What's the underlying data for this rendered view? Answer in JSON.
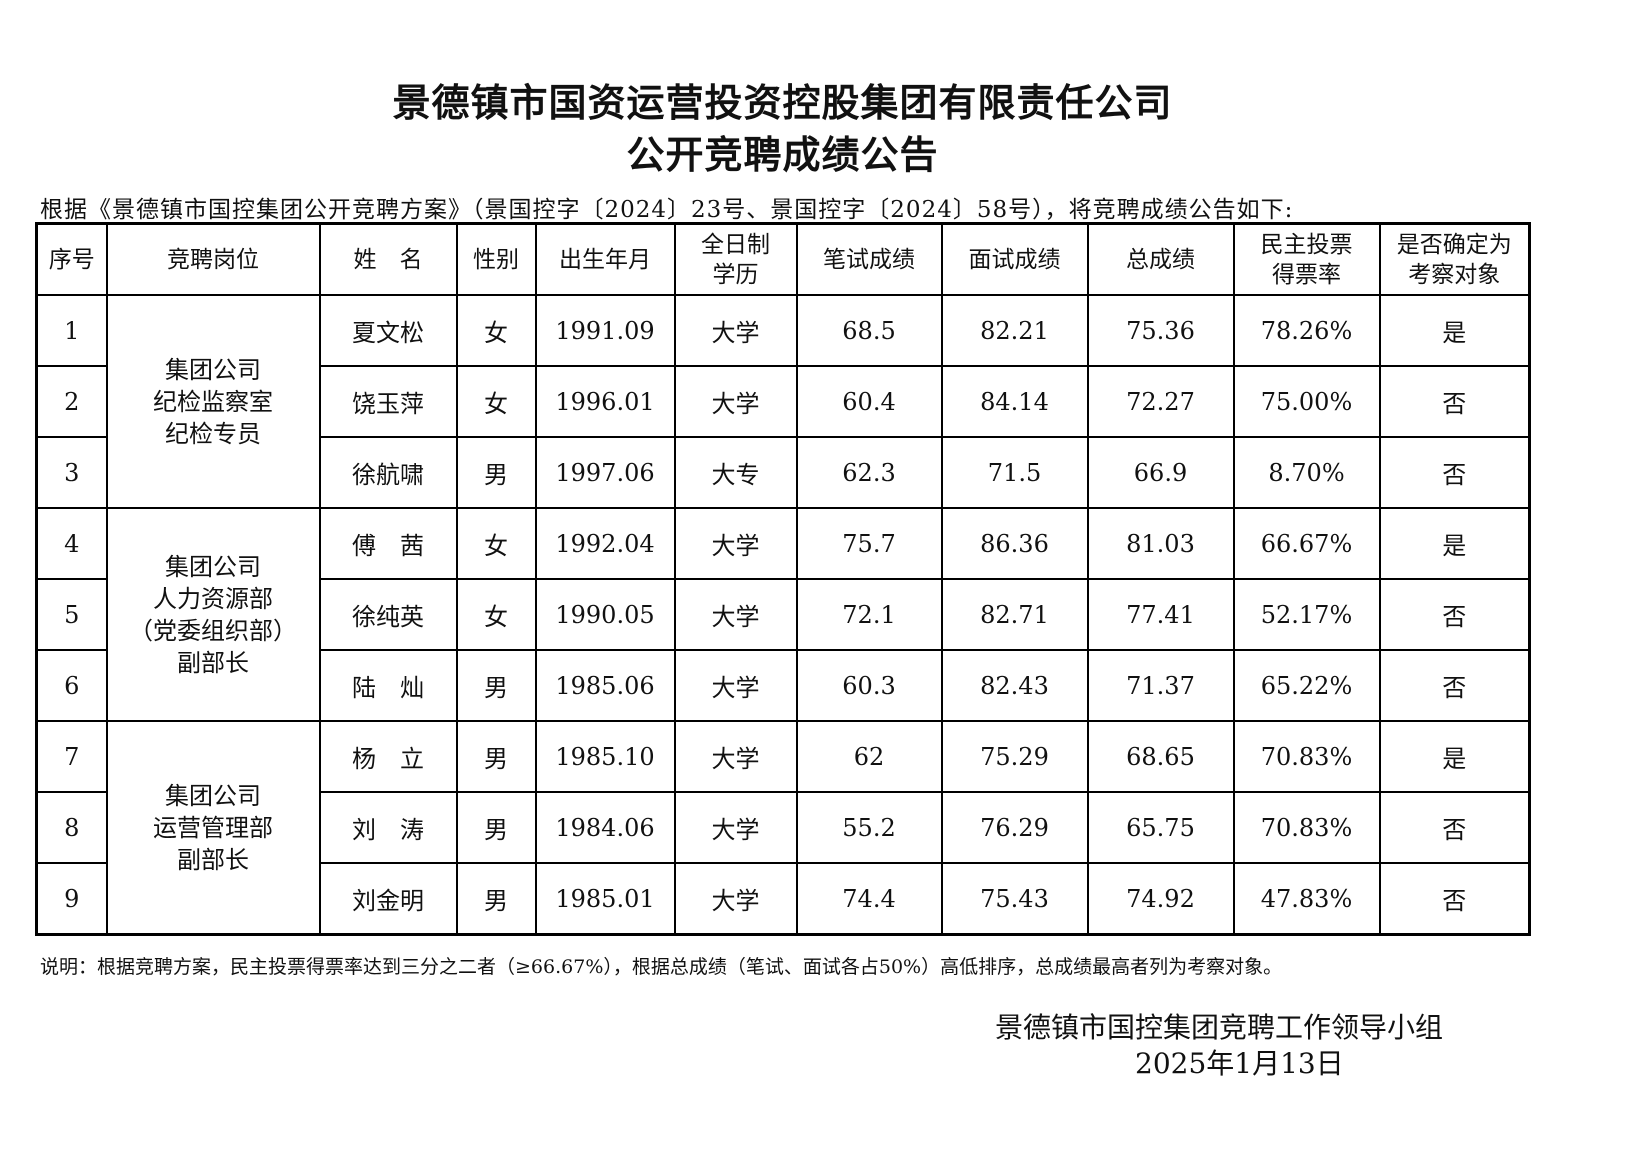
{
  "title_line1": "景德镇市国资运营投资控股集团有限责任公司",
  "title_line2": "公开竞聘成绩公告",
  "intro": "根据《景德镇市国控集团公开竞聘方案》（景国控字〔2024〕23号、景国控字〔2024〕58号），将竞聘成绩公告如下:",
  "headers": [
    "序号",
    "竞聘岗位",
    "姓　名",
    "性别",
    "出生年月",
    "全日制\n学历",
    "笔试成绩",
    "面试成绩",
    "总成绩",
    "民主投票\n得票率",
    "是否确定为\n考察对象"
  ],
  "positions": [
    "集团公司\n纪检监察室\n纪检专员",
    "集团公司\n人力资源部\n（党委组织部）\n副部长",
    "集团公司\n运营管理部\n副部长"
  ],
  "rows": [
    [
      "1",
      "夏文松",
      "女",
      "1991.09",
      "大学",
      "68.5",
      "82.21",
      "75.36",
      "78.26%",
      "是"
    ],
    [
      "2",
      "饶玉萍",
      "女",
      "1996.01",
      "大学",
      "60.4",
      "84.14",
      "72.27",
      "75.00%",
      "否"
    ],
    [
      "3",
      "徐航啸",
      "男",
      "1997.06",
      "大专",
      "62.3",
      "71.5",
      "66.9",
      "8.70%",
      "否"
    ],
    [
      "4",
      "傅　茜",
      "女",
      "1992.04",
      "大学",
      "75.7",
      "86.36",
      "81.03",
      "66.67%",
      "是"
    ],
    [
      "5",
      "徐纯英",
      "女",
      "1990.05",
      "大学",
      "72.1",
      "82.71",
      "77.41",
      "52.17%",
      "否"
    ],
    [
      "6",
      "陆　灿",
      "男",
      "1985.06",
      "大学",
      "60.3",
      "82.43",
      "71.37",
      "65.22%",
      "否"
    ],
    [
      "7",
      "杨　立",
      "男",
      "1985.10",
      "大学",
      "62",
      "75.29",
      "68.65",
      "70.83%",
      "是"
    ],
    [
      "8",
      "刘　涛",
      "男",
      "1984.06",
      "大学",
      "55.2",
      "76.29",
      "65.75",
      "70.83%",
      "否"
    ],
    [
      "9",
      "刘金明",
      "男",
      "1985.01",
      "大学",
      "74.4",
      "75.43",
      "74.92",
      "47.83%",
      "否"
    ]
  ],
  "note": "说明：根据竞聘方案，民主投票得票率达到三分之二者（≥66.67%），根据总成绩（笔试、面试各占50%）高低排序，总成绩最高者列为考察对象。",
  "signature": "景德镇市国控集团竞聘工作领导小组",
  "date": "2025年1月13日"
}
